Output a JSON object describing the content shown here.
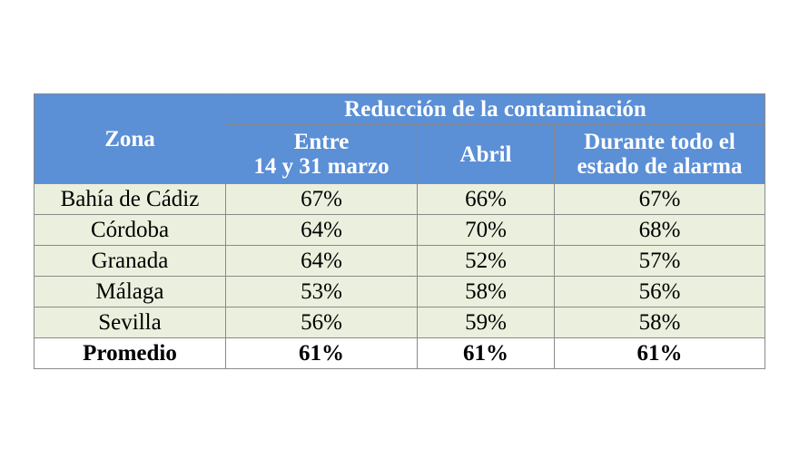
{
  "table": {
    "zone_header": "Zona",
    "group_header": "Reducción de la contaminación",
    "sub_headers": [
      "Entre\n14 y 31 marzo",
      "Abril",
      "Durante todo el\nestado de alarma"
    ],
    "rows": [
      {
        "zona": "Bahía de Cádiz",
        "values": [
          "67%",
          "66%",
          "67%"
        ]
      },
      {
        "zona": "Córdoba",
        "values": [
          "64%",
          "70%",
          "68%"
        ]
      },
      {
        "zona": "Granada",
        "values": [
          "64%",
          "52%",
          "57%"
        ]
      },
      {
        "zona": "Málaga",
        "values": [
          "53%",
          "58%",
          "56%"
        ]
      },
      {
        "zona": "Sevilla",
        "values": [
          "56%",
          "59%",
          "58%"
        ]
      }
    ],
    "average": {
      "zona": "Promedio",
      "values": [
        "61%",
        "61%",
        "61%"
      ]
    }
  },
  "colors": {
    "header_bg": "#5b8fd6",
    "row_bg": "#eaf0dd",
    "border": "#8a8a8a"
  }
}
